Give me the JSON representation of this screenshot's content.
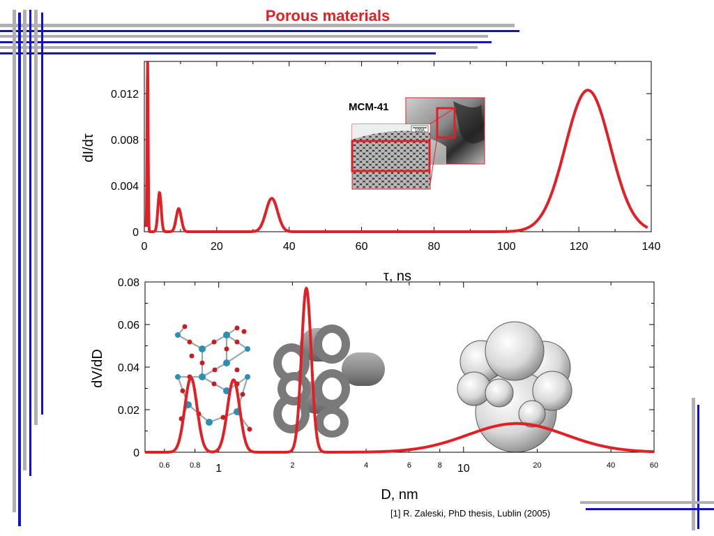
{
  "slide": {
    "title": "Porous materials",
    "citation": "[1]  R. Zaleski, PhD thesis, Lublin (2005)",
    "inset_label": "MCM-41",
    "scale_bar_label": "100A",
    "accent_color": "#e31e24",
    "decor_blue": "#1010d0",
    "decor_gray": "#b0b0b0"
  },
  "chart_data": [
    {
      "type": "line",
      "xlabel": "τ, ns",
      "ylabel": "dI/dτ",
      "xlim": [
        0,
        140
      ],
      "ylim": [
        0,
        0.0148
      ],
      "x_ticks": [
        "0",
        "20",
        "40",
        "60",
        "80",
        "100",
        "120",
        "140"
      ],
      "x_tick_values": [
        0,
        20,
        40,
        60,
        80,
        100,
        120,
        140
      ],
      "y_ticks": [
        "0",
        "0.004",
        "0.008",
        "0.012"
      ],
      "y_tick_values": [
        0,
        0.004,
        0.008,
        0.012
      ],
      "series": [
        {
          "color": "#e31e24",
          "peaks": [
            {
              "center": 0.9,
              "height": 0.0148,
              "width": 0.15
            },
            {
              "center": 4.2,
              "height": 0.0034,
              "width": 0.45
            },
            {
              "center": 9.5,
              "height": 0.002,
              "width": 0.7
            },
            {
              "center": 35.2,
              "height": 0.0029,
              "width": 1.6
            },
            {
              "center": 122.5,
              "height": 0.0123,
              "width": 6.2
            }
          ]
        }
      ]
    },
    {
      "type": "line",
      "xlabel": "D, nm",
      "ylabel": "dV/dD",
      "x_scale": "log",
      "xlim": [
        0.5,
        60
      ],
      "ylim": [
        0,
        0.08
      ],
      "x_ticks": [
        "0.6",
        "0.8",
        "1",
        "2",
        "4",
        "6",
        "8",
        "10",
        "20",
        "40",
        "60"
      ],
      "x_tick_values": [
        0.6,
        0.8,
        1,
        2,
        4,
        6,
        8,
        10,
        20,
        40,
        60
      ],
      "y_ticks": [
        "0",
        "0.02",
        "0.04",
        "0.06",
        "0.08"
      ],
      "y_tick_values": [
        0,
        0.02,
        0.04,
        0.06,
        0.08
      ],
      "series": [
        {
          "color": "#e31e24",
          "peaks": [
            {
              "center": 0.77,
              "height": 0.035,
              "width": 0.025
            },
            {
              "center": 1.15,
              "height": 0.034,
              "width": 0.025
            },
            {
              "center": 2.28,
              "height": 0.077,
              "width": 0.02
            },
            {
              "center": 16.5,
              "height": 0.0135,
              "width": 0.2
            }
          ]
        }
      ]
    }
  ]
}
